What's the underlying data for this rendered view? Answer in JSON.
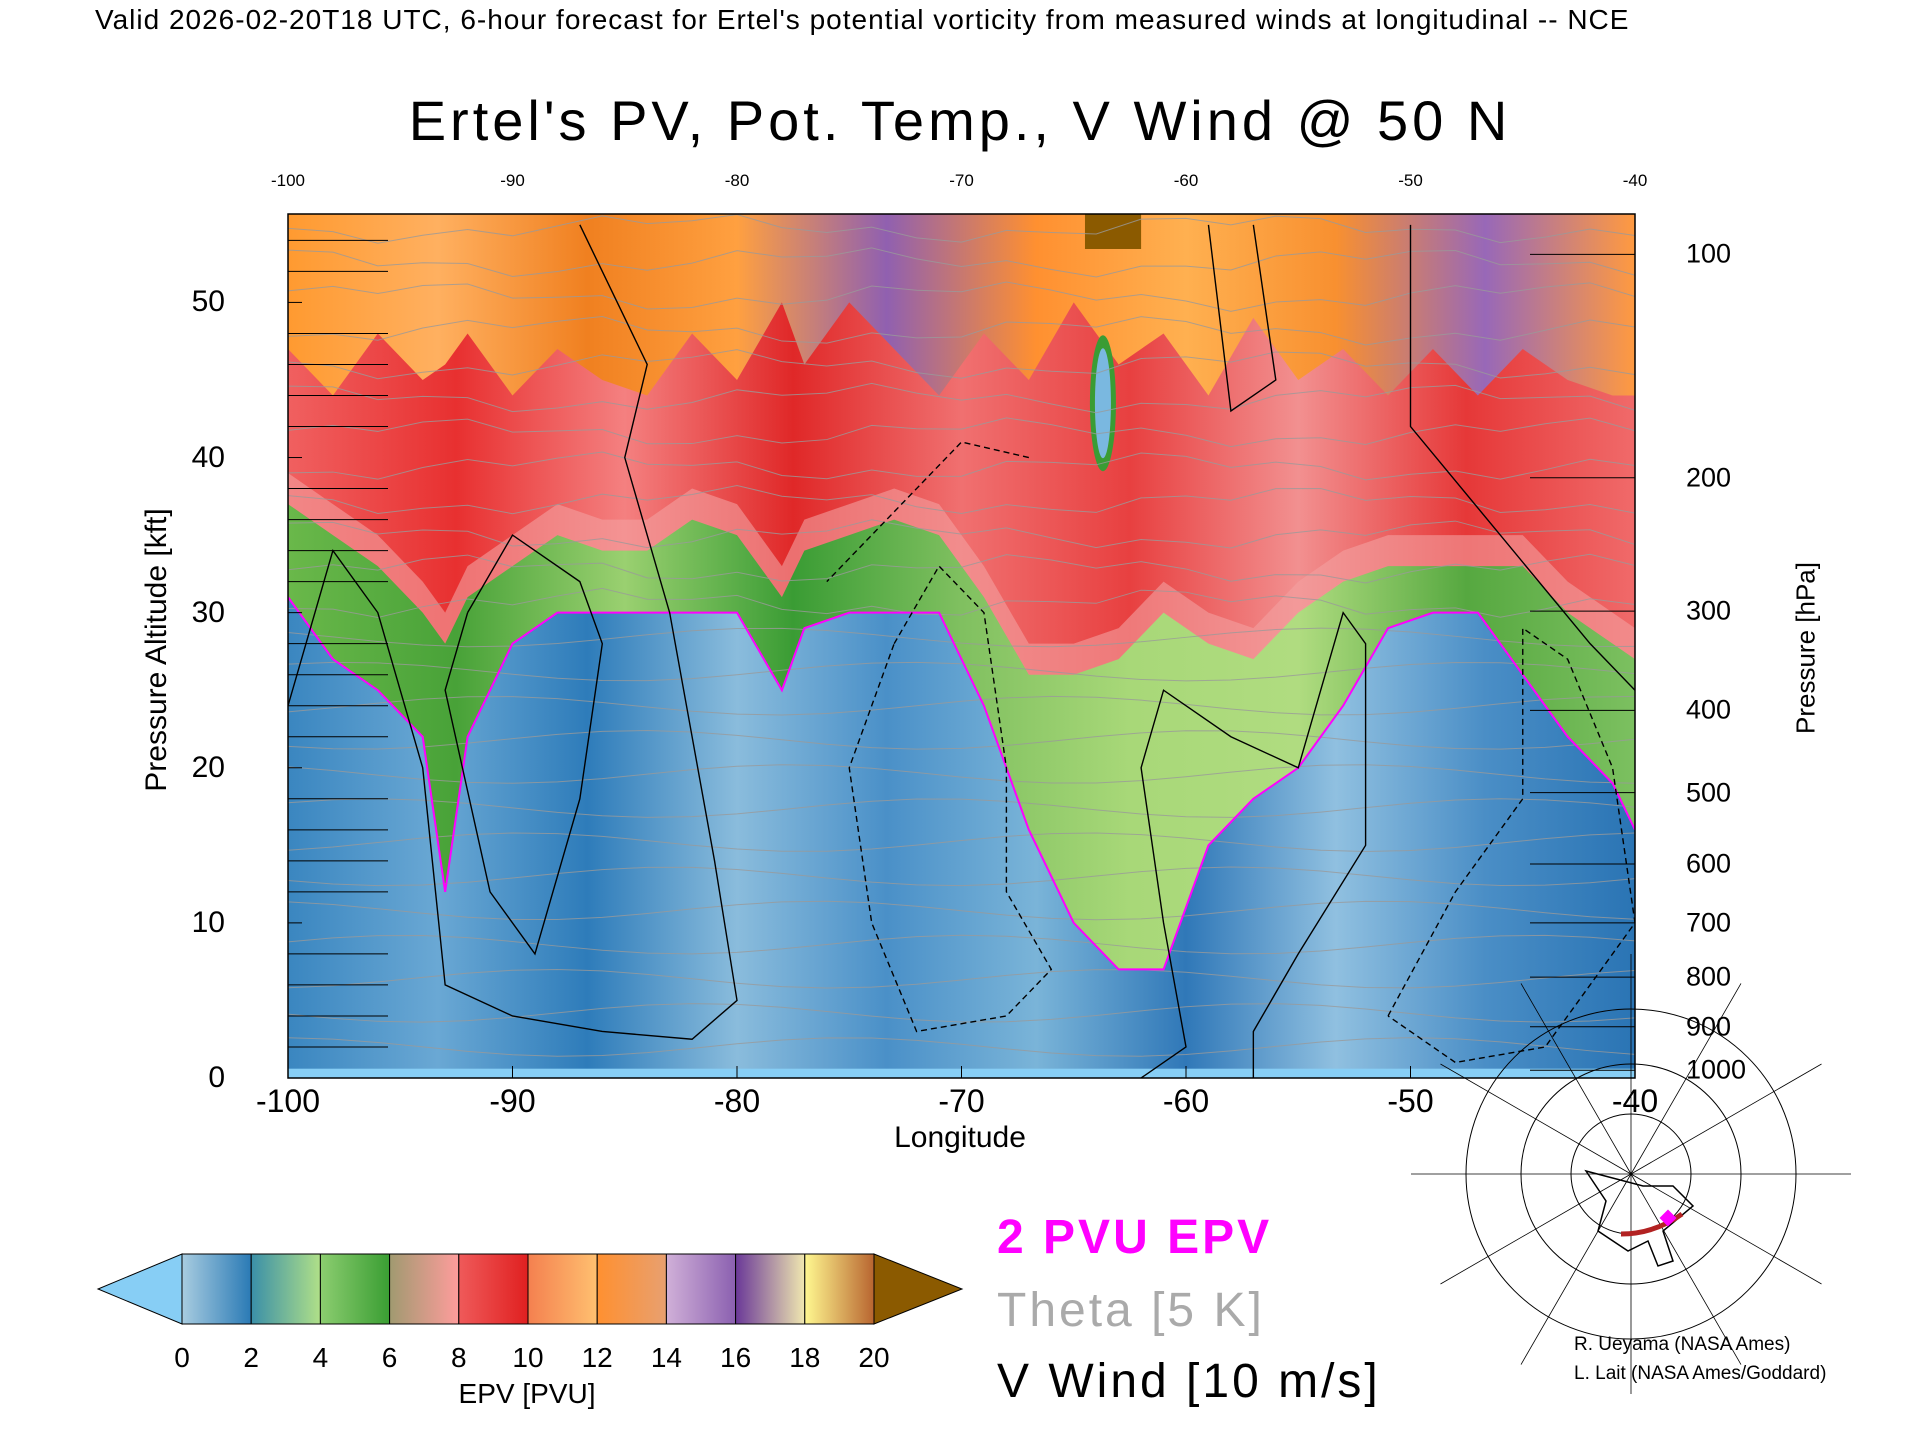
{
  "header": {
    "top_title": "Valid 2026-02-20T18 UTC, 6-hour forecast for Ertel's potential vorticity from measured winds at longitudinal -- NCE",
    "chart_title": "Ertel's PV, Pot. Temp., V Wind @ 50 N"
  },
  "chart_data": {
    "type": "heatmap",
    "title": "Ertel's PV, Pot. Temp., V Wind @ 50 N",
    "xlabel": "Longitude",
    "ylabel": "Pressure Altitude [kft]",
    "y2label": "Pressure [hPa]",
    "xlim": [
      -100,
      -40
    ],
    "ylim": [
      0,
      55.7
    ],
    "x_ticks": [
      "-100",
      "-90",
      "-80",
      "-70",
      "-60",
      "-50",
      "-40"
    ],
    "x_tick_values": [
      -100,
      -90,
      -80,
      -70,
      -60,
      -50,
      -40
    ],
    "y_ticks": [
      "0",
      "10",
      "20",
      "30",
      "40",
      "50"
    ],
    "y_tick_values": [
      0,
      10,
      20,
      30,
      40,
      50
    ],
    "pressure_ticks": [
      {
        "label": "100",
        "kft": 53.1
      },
      {
        "label": "200",
        "kft": 38.7
      },
      {
        "label": "300",
        "kft": 30.1
      },
      {
        "label": "400",
        "kft": 23.7
      },
      {
        "label": "500",
        "kft": 18.4
      },
      {
        "label": "600",
        "kft": 13.8
      },
      {
        "label": "700",
        "kft": 10.0
      },
      {
        "label": "800",
        "kft": 6.5
      },
      {
        "label": "900",
        "kft": 3.3
      },
      {
        "label": "1000",
        "kft": 0.5
      }
    ],
    "approx_profiles": {
      "longitude": [
        -100,
        -98,
        -96,
        -94,
        -93,
        -92,
        -90,
        -88,
        -86,
        -84,
        -82,
        -80,
        -78,
        -77,
        -75,
        -73,
        -71,
        -69,
        -67,
        -65,
        -63,
        -61,
        -59,
        -57,
        -55,
        -53,
        -51,
        -49,
        -47,
        -45,
        -43,
        -41,
        -40
      ],
      "pv_2pvu_height_kft": [
        31,
        27,
        25,
        22,
        12,
        22,
        28,
        30,
        30,
        30,
        30,
        30,
        25,
        29,
        30,
        30,
        30,
        24,
        16,
        10,
        7,
        7,
        15,
        18,
        20,
        24,
        29,
        30,
        30,
        26,
        22,
        19,
        16
      ],
      "pv_6pvu_height_kft": [
        37,
        35,
        33,
        30,
        28,
        31,
        33,
        35,
        34,
        34,
        36,
        35,
        31,
        34,
        35,
        36,
        35,
        31,
        26,
        26,
        27,
        30,
        28,
        27,
        30,
        32,
        33,
        33,
        33,
        33,
        30,
        28,
        27
      ],
      "pv_12pvu_height_kft": [
        47,
        44,
        48,
        45,
        46,
        48,
        44,
        47,
        45,
        44,
        48,
        45,
        50,
        46,
        50,
        47,
        44,
        48,
        45,
        50,
        46,
        48,
        44,
        49,
        45,
        47,
        44,
        47,
        44,
        47,
        45,
        44,
        44
      ]
    },
    "colorbar": {
      "label": "EPV [PVU]",
      "ticks": [
        "0",
        "2",
        "4",
        "6",
        "8",
        "10",
        "12",
        "14",
        "16",
        "18",
        "20"
      ],
      "under_color": "#87cef5",
      "over_color": "#8b5a00",
      "bands": [
        [
          "#a8cce0",
          "#2a7ab5"
        ],
        [
          "#3a8fa8",
          "#b0e088"
        ],
        [
          "#8ccd70",
          "#3a9e33"
        ],
        [
          "#a09a70",
          "#ff9c9c"
        ],
        [
          "#ef5a5a",
          "#e02020"
        ],
        [
          "#f4804f",
          "#ffc070"
        ],
        [
          "#ff9030",
          "#e8a070"
        ],
        [
          "#d0b0d8",
          "#8b60b0"
        ],
        [
          "#6a3898",
          "#f0e8b0"
        ],
        [
          "#fff890",
          "#b86530"
        ]
      ]
    },
    "legend": [
      {
        "text": "2 PVU EPV",
        "color": "#ff00ff"
      },
      {
        "text": "Theta [5 K]",
        "color": "#aaaaaa"
      },
      {
        "text": "V Wind [10 m/s]",
        "color": "#000000"
      }
    ],
    "grid": false
  },
  "credits": [
    "R. Ueyama (NASA Ames)",
    "L. Lait (NASA Ames/Goddard)"
  ],
  "inset_map": {
    "icon": "locator-map-icon",
    "track_color": "#b22222",
    "marker_color": "#ff00ff"
  }
}
